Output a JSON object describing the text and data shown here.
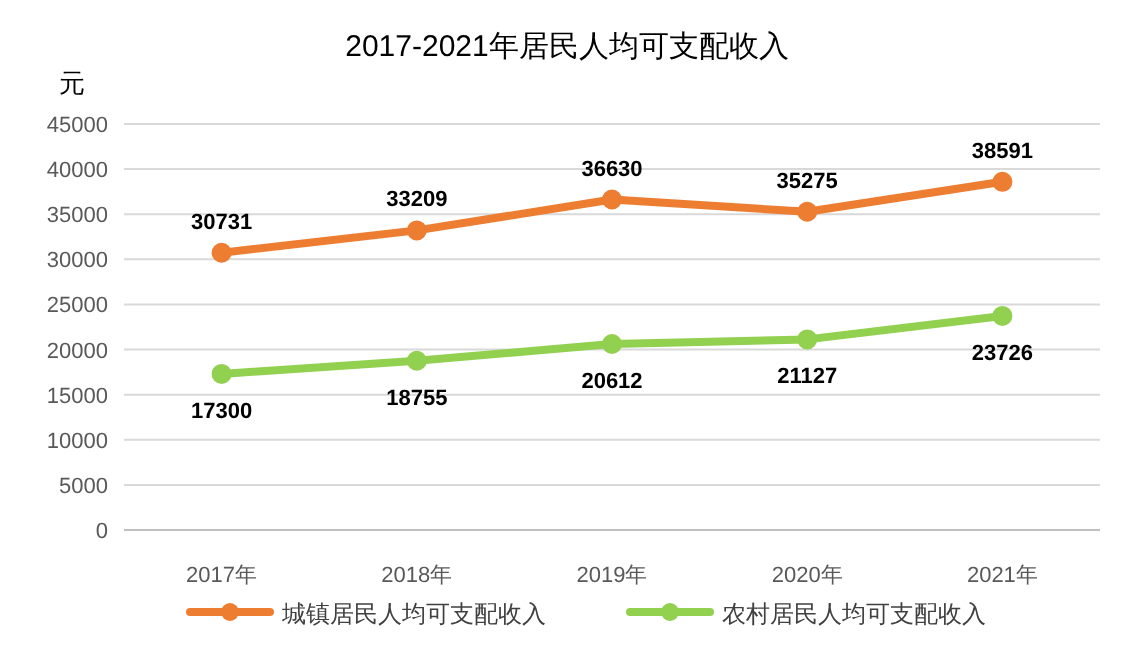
{
  "chart_data": {
    "type": "line",
    "title": "2017-2021年居民人均可支配收入",
    "ylabel": "元",
    "categories": [
      "2017年",
      "2018年",
      "2019年",
      "2020年",
      "2021年"
    ],
    "series": [
      {
        "name": "城镇居民人均可支配收入",
        "color": "#ed7d31",
        "values": [
          30731,
          33209,
          36630,
          35275,
          38591
        ]
      },
      {
        "name": "农村居民人均可支配收入",
        "color": "#92d050",
        "values": [
          17300,
          18755,
          20612,
          21127,
          23726
        ]
      }
    ],
    "ylim": [
      0,
      45000
    ],
    "yticks": [
      0,
      5000,
      10000,
      15000,
      20000,
      25000,
      30000,
      35000,
      40000,
      45000
    ],
    "grid": "y",
    "legend": "bottom",
    "marker": "circle",
    "line_style": "solid",
    "data_labels": true
  }
}
